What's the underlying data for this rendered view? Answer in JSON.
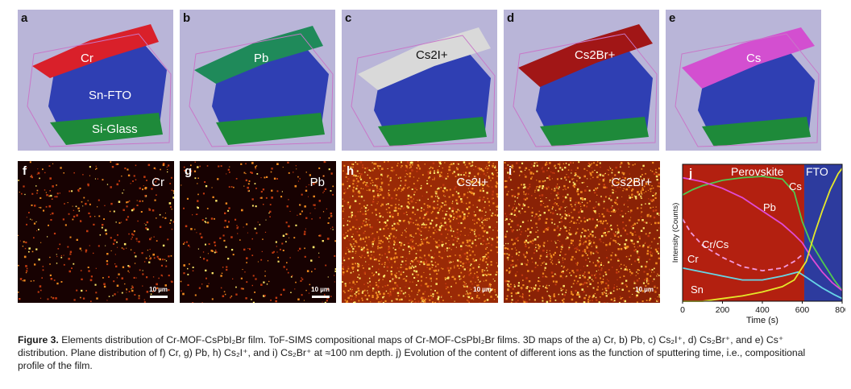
{
  "figure": {
    "top_panels": [
      {
        "label": "a",
        "element": "Cr",
        "extra_labels": [
          "Sn-FTO",
          "Si-Glass"
        ]
      },
      {
        "label": "b",
        "element": "Pb"
      },
      {
        "label": "c",
        "element": "Cs2I+"
      },
      {
        "label": "d",
        "element": "Cs2Br+"
      },
      {
        "label": "e",
        "element": "Cs"
      }
    ],
    "bottom_panels": [
      {
        "label": "f",
        "element": "Cr",
        "scale": "10 µm"
      },
      {
        "label": "g",
        "element": "Pb",
        "scale": "10 µm"
      },
      {
        "label": "h",
        "element": "Cs2I+",
        "scale": "10 µm"
      },
      {
        "label": "i",
        "element": "Cs2Br+",
        "scale": "10 µm"
      }
    ],
    "chart_panel_label": "j"
  },
  "chart_data": {
    "type": "line",
    "xlabel": "Time (s)",
    "ylabel": "Intensity (Counts)",
    "xlim": [
      0,
      800
    ],
    "xticks": [
      0,
      200,
      400,
      600,
      800
    ],
    "regions": [
      {
        "name": "Perovskite",
        "range": [
          0,
          610
        ],
        "color": "#b32010"
      },
      {
        "name": "FTO",
        "range": [
          610,
          800
        ],
        "color": "#2d3b9e"
      }
    ],
    "series": [
      {
        "name": "Cs",
        "color": "#4fc94f",
        "dash": false,
        "x": [
          0,
          50,
          100,
          200,
          300,
          400,
          500,
          560,
          600,
          640,
          700,
          760,
          800
        ],
        "y": [
          0.8,
          0.84,
          0.87,
          0.91,
          0.93,
          0.94,
          0.92,
          0.82,
          0.6,
          0.45,
          0.3,
          0.16,
          0.08
        ]
      },
      {
        "name": "Pb",
        "color": "#e04bd6",
        "dash": false,
        "x": [
          0,
          100,
          200,
          300,
          400,
          500,
          560,
          600,
          650,
          700,
          750,
          800
        ],
        "y": [
          0.93,
          0.9,
          0.85,
          0.78,
          0.68,
          0.58,
          0.5,
          0.44,
          0.32,
          0.22,
          0.14,
          0.08
        ]
      },
      {
        "name": "Cr/Cs",
        "color": "#f29adf",
        "dash": true,
        "x": [
          0,
          40,
          100,
          200,
          300,
          400,
          500,
          560,
          600
        ],
        "y": [
          0.62,
          0.52,
          0.42,
          0.33,
          0.26,
          0.23,
          0.25,
          0.3,
          0.35
        ]
      },
      {
        "name": "Cr",
        "color": "#67d6e6",
        "dash": false,
        "x": [
          0,
          100,
          200,
          300,
          400,
          500,
          580,
          620,
          700,
          760,
          800
        ],
        "y": [
          0.25,
          0.22,
          0.19,
          0.16,
          0.16,
          0.19,
          0.22,
          0.18,
          0.1,
          0.05,
          0.02
        ]
      },
      {
        "name": "Sn",
        "color": "#e5e82a",
        "dash": false,
        "x": [
          0,
          100,
          200,
          300,
          400,
          500,
          560,
          620,
          660,
          700,
          740,
          780,
          800
        ],
        "y": [
          0.0,
          0.0,
          0.02,
          0.04,
          0.07,
          0.11,
          0.16,
          0.3,
          0.5,
          0.68,
          0.84,
          0.96,
          1.0
        ]
      }
    ]
  },
  "caption": {
    "label": "Figure 3.",
    "text": "Elements distribution of Cr-MOF-CsPbI₂Br film. ToF-SIMS compositional maps of Cr-MOF-CsPbI₂Br films. 3D maps of the a) Cr, b) Pb, c) Cs₂I⁺, d) Cs₂Br⁺, and e) Cs⁺ distribution. Plane distribution of f) Cr, g) Pb, h) Cs₂I⁺, and i) Cs₂Br⁺ at ≈100 nm depth. j) Evolution of the content of different ions as the function of sputtering time, i.e., compositional profile of the film."
  }
}
